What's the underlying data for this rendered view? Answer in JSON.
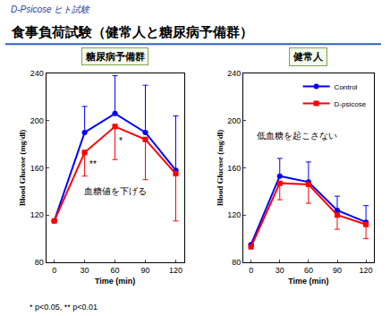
{
  "header": {
    "tag": "D-Psicose ヒト試験",
    "title": "食事負荷試験（健常人と糖尿病予備群）"
  },
  "footnote": "* p<0.05, ** p<0.01",
  "chart_data": [
    {
      "type": "line",
      "title": "糖尿病予備群",
      "x_label": "Time (min)",
      "y_label": "Blood Glucose (mg/dl)",
      "x": [
        0,
        30,
        60,
        90,
        120
      ],
      "xlim": [
        -8,
        128
      ],
      "xticks": [
        0,
        30,
        60,
        90,
        120
      ],
      "ylim": [
        80,
        240
      ],
      "yticks": [
        80,
        120,
        160,
        200,
        240
      ],
      "grid": false,
      "series": [
        {
          "name": "Control",
          "color": "#0000ff",
          "marker": "circle",
          "line_style": "solid",
          "values": [
            115,
            190,
            206,
            190,
            158
          ],
          "error_plus": [
            0,
            22,
            32,
            40,
            46
          ]
        },
        {
          "name": "D-psicose",
          "color": "#ff0000",
          "marker": "square",
          "line_style": "solid",
          "values": [
            115,
            173,
            195,
            184,
            155
          ],
          "error_minus": [
            0,
            20,
            28,
            34,
            40
          ]
        }
      ],
      "annotations": [
        {
          "text": "**",
          "x": 38,
          "y": 163
        },
        {
          "text": "*",
          "x": 66,
          "y": 183
        },
        {
          "text": "血糖値を下げる",
          "x": 60,
          "y": 140
        }
      ]
    },
    {
      "type": "line",
      "title": "健常人",
      "x_label": "Time (min)",
      "y_label": "Blood Glucose (mg/dl)",
      "x": [
        0,
        30,
        60,
        90,
        120
      ],
      "xlim": [
        -8,
        128
      ],
      "xticks": [
        0,
        30,
        60,
        90,
        120
      ],
      "ylim": [
        80,
        240
      ],
      "yticks": [
        80,
        120,
        160,
        200,
        240
      ],
      "grid": false,
      "legend": "upper right",
      "series": [
        {
          "name": "Control",
          "color": "#0000ff",
          "marker": "circle",
          "line_style": "solid",
          "values": [
            95,
            153,
            148,
            124,
            114
          ],
          "error_plus": [
            0,
            15,
            17,
            12,
            14
          ]
        },
        {
          "name": "D-psicose",
          "color": "#ff0000",
          "marker": "square",
          "line_style": "solid",
          "values": [
            93,
            147,
            146,
            120,
            112
          ],
          "error_minus": [
            0,
            14,
            16,
            12,
            12
          ]
        }
      ],
      "annotations": [
        {
          "text": "低血糖を起こさない",
          "x": 48,
          "y": 187
        }
      ]
    }
  ]
}
